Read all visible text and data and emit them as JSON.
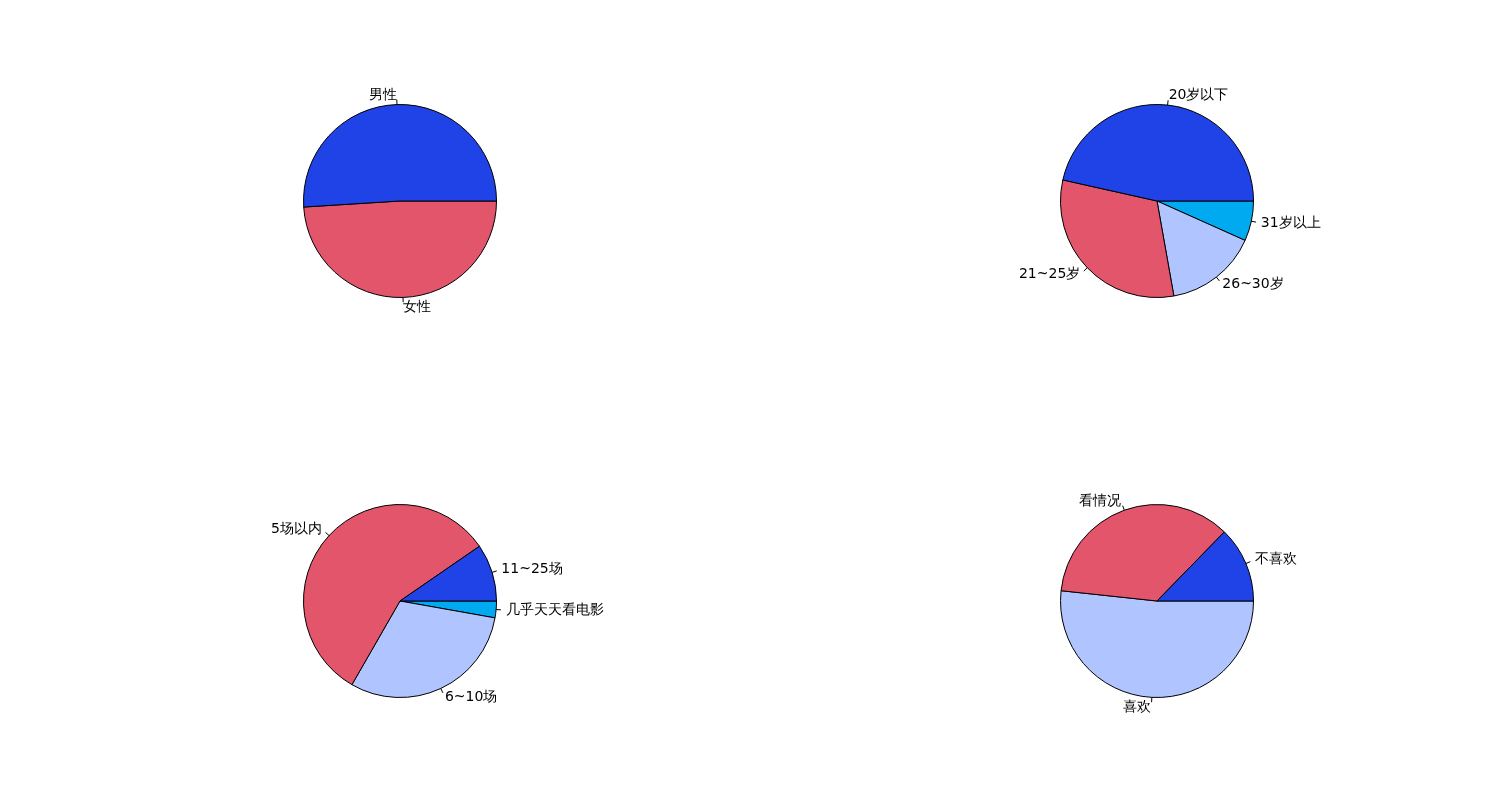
{
  "chart_data": [
    {
      "type": "pie",
      "categories": [
        "男性",
        "女性"
      ],
      "values": [
        51,
        49
      ],
      "colors": [
        "#1f43e6",
        "#e3556b"
      ]
    },
    {
      "type": "pie",
      "categories": [
        "20岁以下",
        "21~25岁",
        "26~30岁",
        "31岁以上"
      ],
      "values": [
        46.5,
        31.3,
        15.5,
        6.7
      ],
      "colors": [
        "#1f43e6",
        "#e3556b",
        "#b0c4ff",
        "#00aaf0"
      ]
    },
    {
      "type": "pie",
      "categories": [
        "11~25场",
        "5场以内",
        "6~10场",
        "几乎天天看电影"
      ],
      "values": [
        9.6,
        57.1,
        30.5,
        2.8
      ],
      "colors": [
        "#1f43e6",
        "#e3556b",
        "#b0c4ff",
        "#00aaf0"
      ]
    },
    {
      "type": "pie",
      "categories": [
        "不喜欢",
        "看情况",
        "喜欢"
      ],
      "values": [
        12.7,
        35.6,
        51.7
      ],
      "colors": [
        "#1f43e6",
        "#e3556b",
        "#b0c4ff"
      ]
    }
  ]
}
